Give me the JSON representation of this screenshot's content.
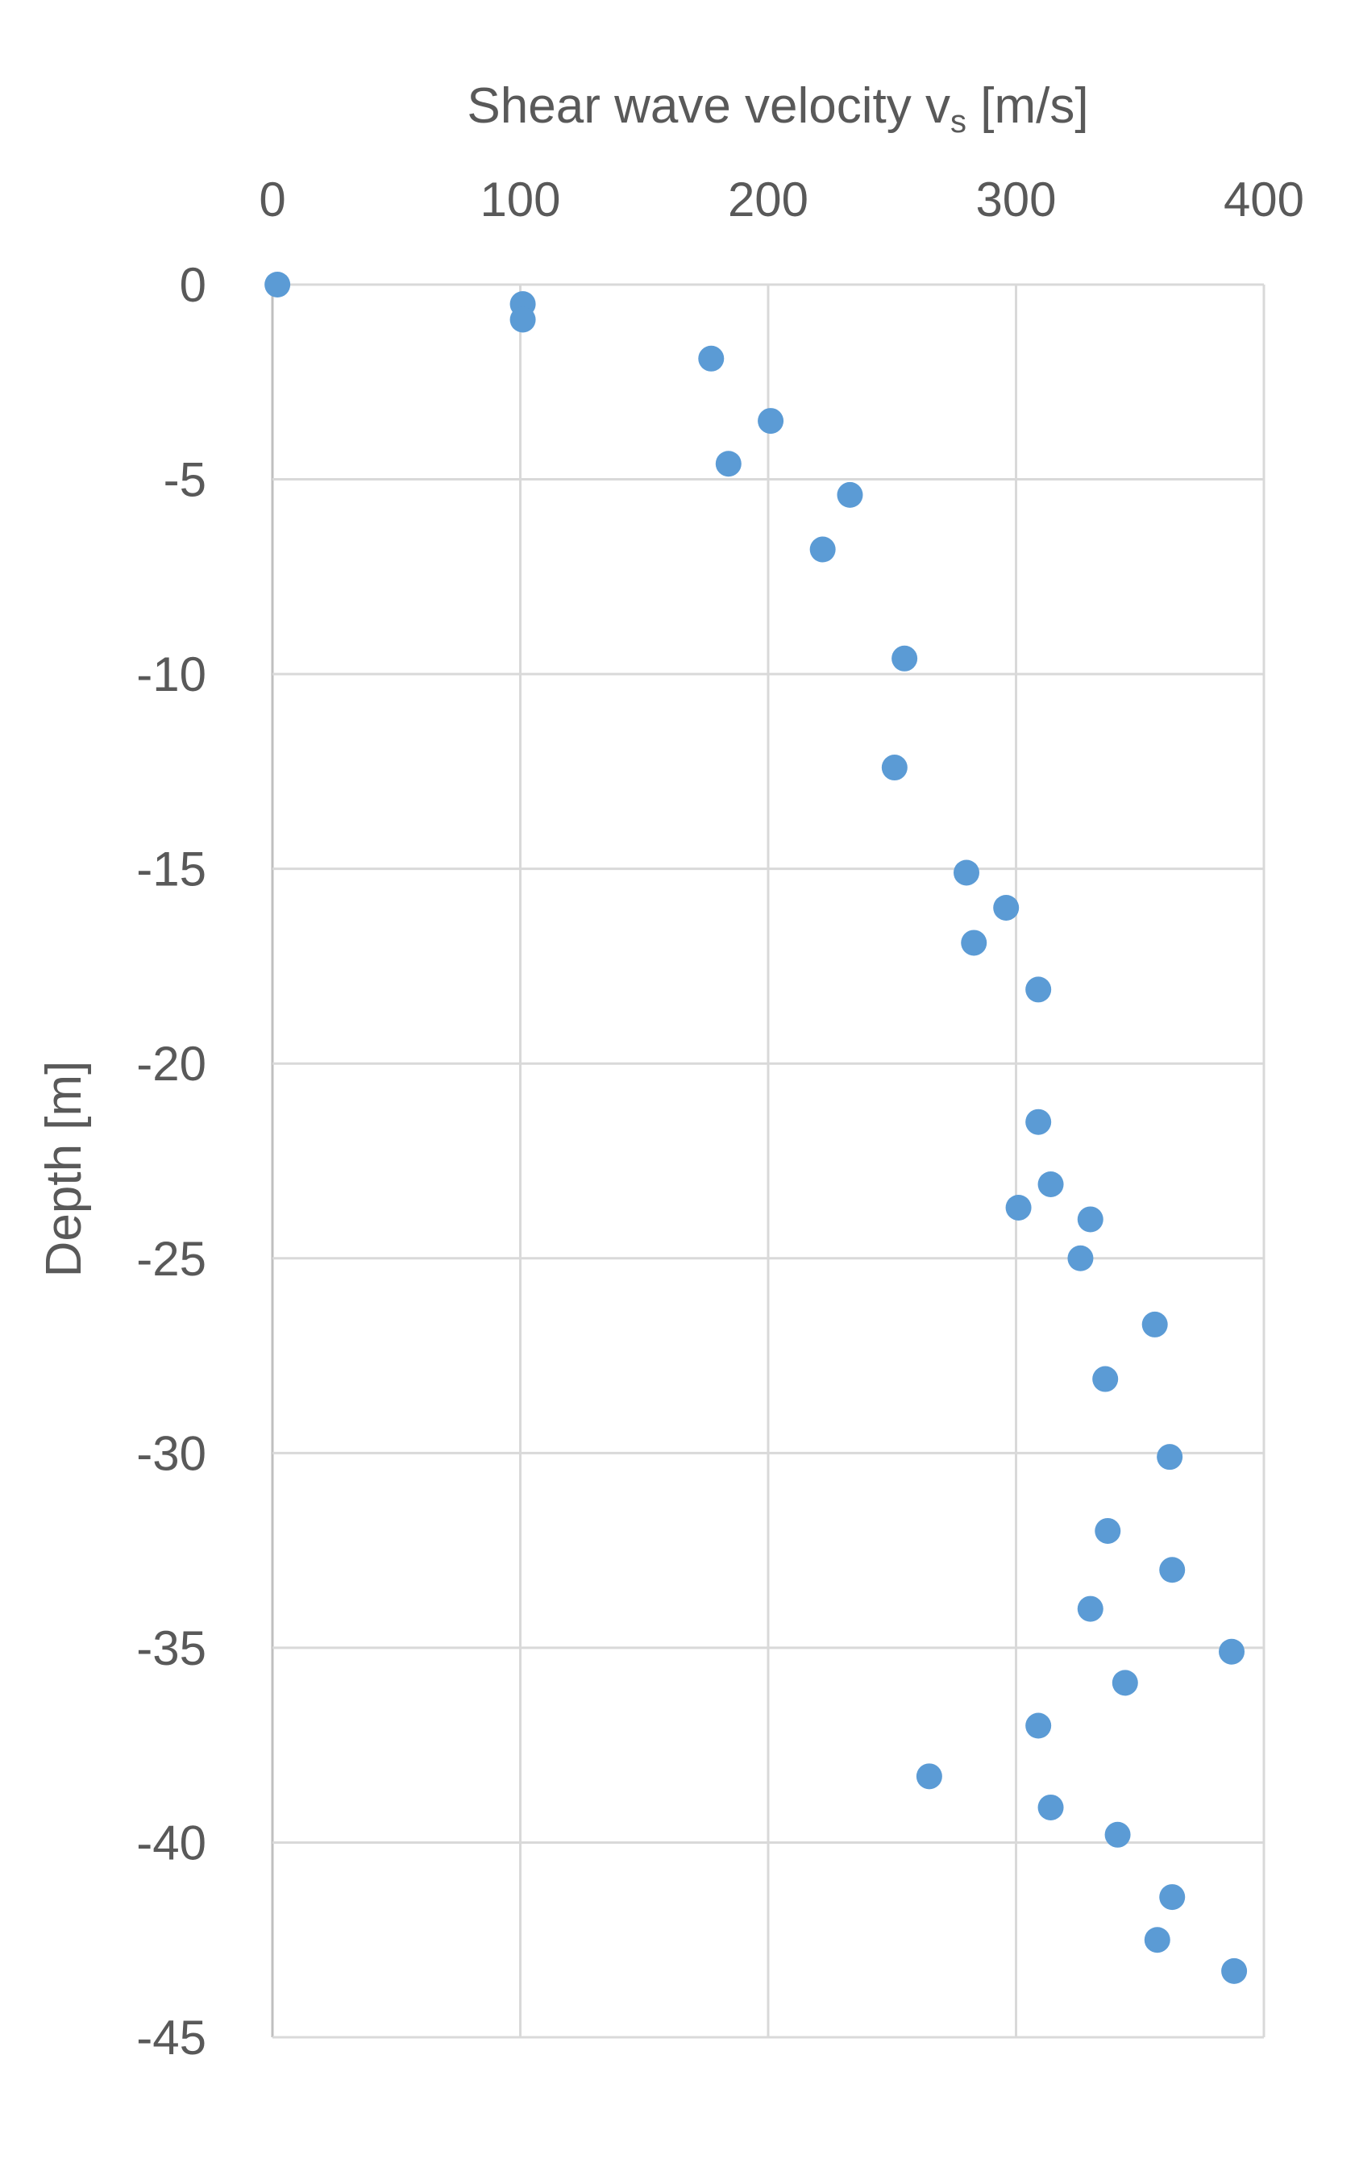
{
  "chart_data": {
    "type": "scatter",
    "title": "",
    "xlabel": "Shear wave velocity v",
    "xlabel_subscript": "s",
    "xlabel_unit": " [m/s]",
    "ylabel": "Depth [m]",
    "xlim": [
      0,
      400
    ],
    "ylim": [
      -45,
      0
    ],
    "x_ticks": [
      0,
      100,
      200,
      300,
      400
    ],
    "y_ticks": [
      0,
      -5,
      -10,
      -15,
      -20,
      -25,
      -30,
      -35,
      -40,
      -45
    ],
    "x_axis_position": "top",
    "grid": true,
    "legend": "none",
    "marker_color": "#5b9bd5",
    "series": [
      {
        "x": [
          2,
          101,
          101,
          177,
          201,
          184,
          233,
          222,
          255,
          251,
          280,
          296,
          283,
          309,
          309,
          314,
          301,
          330,
          326,
          356,
          336,
          362,
          337,
          363,
          330,
          387,
          344,
          309,
          265,
          314,
          341,
          363,
          357,
          388
        ],
        "y": [
          0,
          -0.5,
          -0.9,
          -1.9,
          -3.5,
          -4.6,
          -5.4,
          -6.8,
          -9.6,
          -12.4,
          -15.1,
          -16.0,
          -16.9,
          -18.1,
          -21.5,
          -23.1,
          -23.7,
          -24.0,
          -25.0,
          -26.7,
          -28.1,
          -30.1,
          -32.0,
          -33.0,
          -34.0,
          -35.1,
          -35.9,
          -37.0,
          -38.3,
          -39.1,
          -39.8,
          -41.4,
          -42.5,
          -43.3
        ]
      }
    ]
  }
}
